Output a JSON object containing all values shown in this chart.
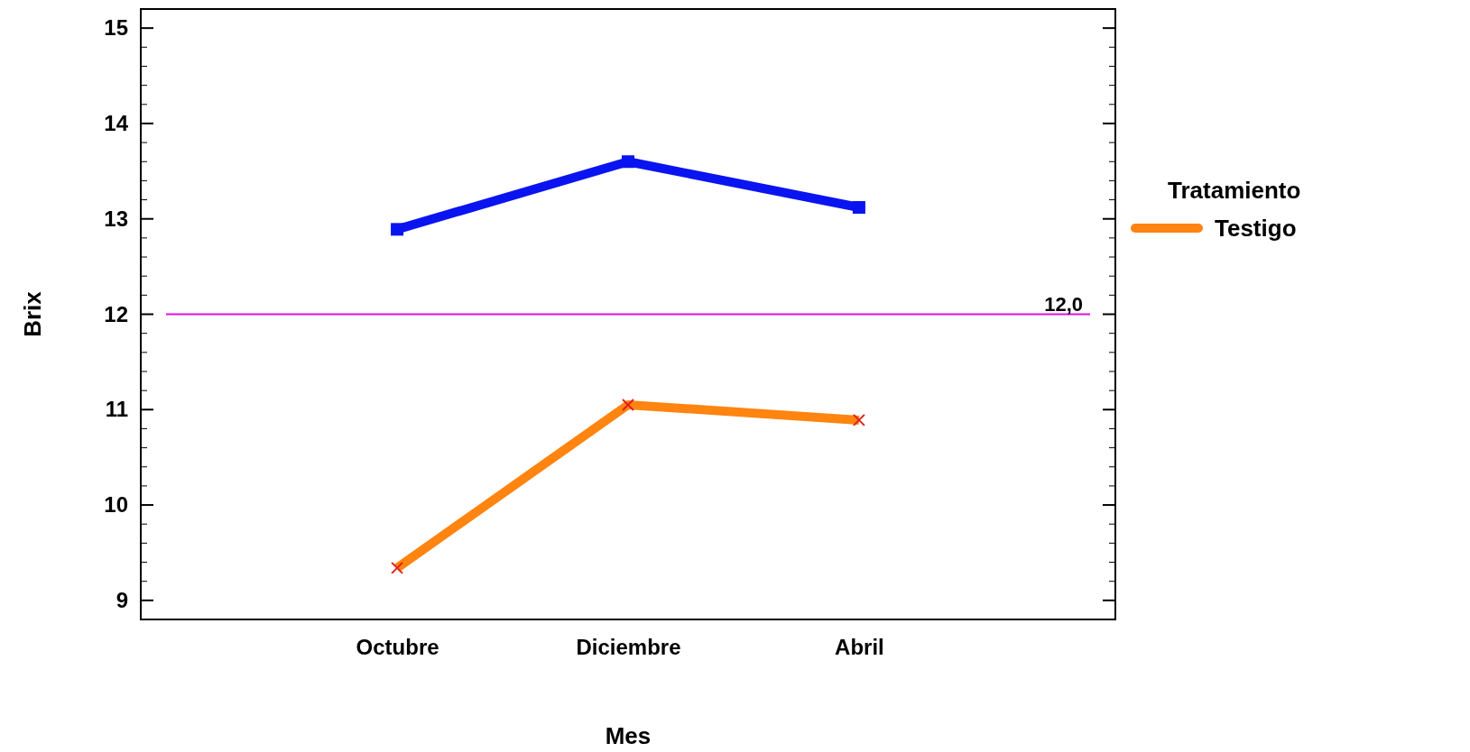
{
  "chart_data": {
    "type": "line",
    "xlabel": "Mes",
    "ylabel": "Brix",
    "legend_title": "Tratamiento",
    "categories": [
      "Octubre",
      "Diciembre",
      "Abril"
    ],
    "series": [
      {
        "color": "#0a14f0",
        "values": [
          12.89,
          13.6,
          13.12
        ],
        "marker": "square"
      },
      {
        "name": "Testigo",
        "color": "#ff8410",
        "values": [
          9.34,
          11.05,
          10.89
        ],
        "marker": "cross"
      }
    ],
    "ylim": [
      8.8,
      15.2
    ],
    "yticks": [
      9,
      {
        "value": 9.2,
        "label": null
      },
      {
        "value": 9.4,
        "label": null
      },
      {
        "value": 9.6,
        "label": null
      },
      {
        "value": 9.8,
        "label": null
      },
      10,
      {
        "value": 10.2,
        "label": null
      },
      {
        "value": 10.4,
        "label": null
      },
      {
        "value": 10.6,
        "label": null
      },
      {
        "value": 10.8,
        "label": null
      },
      11,
      {
        "value": 11.2,
        "label": null
      },
      {
        "value": 11.4,
        "label": null
      },
      {
        "value": 11.6,
        "label": null
      },
      {
        "value": 11.8,
        "label": null
      },
      12,
      {
        "value": 12.2,
        "label": null
      },
      {
        "value": 12.4,
        "label": null
      },
      {
        "value": 12.6,
        "label": null
      },
      {
        "value": 12.8,
        "label": null
      },
      13,
      {
        "value": 13.2,
        "label": null
      },
      {
        "value": 13.4,
        "label": null
      },
      {
        "value": 13.6,
        "label": null
      },
      {
        "value": 13.8,
        "label": null
      },
      14,
      {
        "value": 14.2,
        "label": null
      },
      {
        "value": 14.4,
        "label": null
      },
      {
        "value": 14.6,
        "label": null
      },
      {
        "value": 14.8,
        "label": null
      },
      15
    ],
    "ref_lines": [
      {
        "axis": "y",
        "value": 12,
        "label": "12,0",
        "color": "#e010e0"
      }
    ],
    "legend": "right",
    "grid": false,
    "line_style": "solid"
  }
}
